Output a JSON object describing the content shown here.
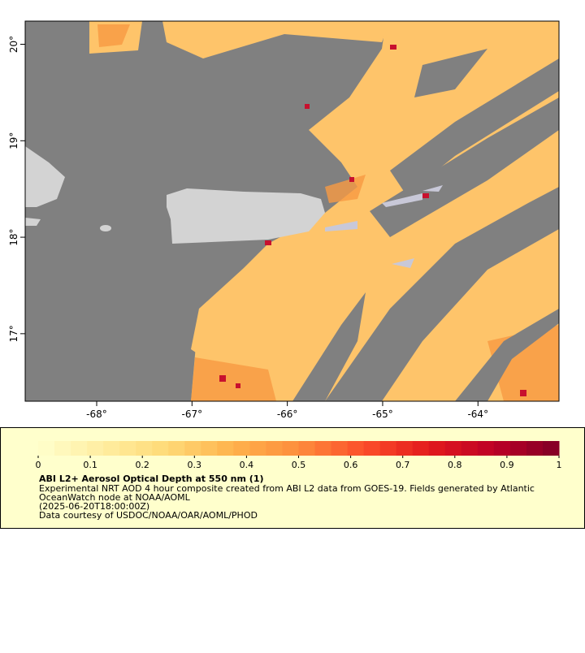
{
  "map": {
    "lon_range": [
      -68.75,
      -63.15
    ],
    "lat_range": [
      16.3,
      20.24
    ],
    "lon_ticks": [
      {
        "value": -68,
        "label": "-68°"
      },
      {
        "value": -67,
        "label": "-67°"
      },
      {
        "value": -66,
        "label": "-66°"
      },
      {
        "value": -65,
        "label": "-65°"
      },
      {
        "value": -64,
        "label": "-64°"
      }
    ],
    "lat_ticks": [
      {
        "value": 20,
        "label": "20°"
      },
      {
        "value": 19,
        "label": "19°"
      },
      {
        "value": 18,
        "label": "18°"
      },
      {
        "value": 17,
        "label": "17°"
      }
    ]
  },
  "colorbar": {
    "range": [
      0,
      1
    ],
    "ticks": [
      0,
      0.1,
      0.2,
      0.3,
      0.4,
      0.5,
      0.6,
      0.7,
      0.8,
      0.9,
      1
    ],
    "colors": [
      "#ffffcc",
      "#ffeda0",
      "#fed976",
      "#feb24c",
      "#fd8d3c",
      "#fc4e2a",
      "#e31a1c",
      "#bd0026",
      "#800026"
    ]
  },
  "legend": {
    "title": "ABI L2+ Aerosol Optical Depth at 550 nm (1)",
    "lines": [
      "Experimental NRT AOD 4 hour composite created from ABI L2 data from GOES-19. Fields generated by Atlantic",
      "OceanWatch node at NOAA/AOML",
      "(2025-06-20T18:00:00Z)",
      "Data courtesy of USDOC/NOAA/OAR/AOML/PHOD"
    ]
  }
}
